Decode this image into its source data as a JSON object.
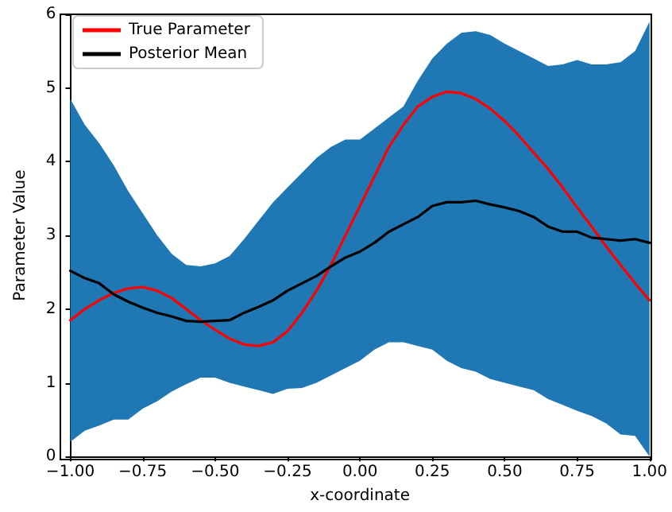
{
  "chart_data": {
    "type": "line",
    "xlabel": "x-coordinate",
    "ylabel": "Parameter Value",
    "xlim": [
      -1,
      1
    ],
    "ylim": [
      0,
      6
    ],
    "xticks": [
      {
        "value": -1,
        "label": "−1.00"
      },
      {
        "value": -0.75,
        "label": "−0.75"
      },
      {
        "value": -0.5,
        "label": "−0.50"
      },
      {
        "value": -0.25,
        "label": "−0.25"
      },
      {
        "value": 0,
        "label": "0.00"
      },
      {
        "value": 0.25,
        "label": "0.25"
      },
      {
        "value": 0.5,
        "label": "0.50"
      },
      {
        "value": 0.75,
        "label": "0.75"
      },
      {
        "value": 1,
        "label": "1.00"
      }
    ],
    "yticks": [
      0,
      1,
      2,
      3,
      4,
      5,
      6
    ],
    "x": [
      -1,
      -0.95,
      -0.9,
      -0.85,
      -0.8,
      -0.75,
      -0.7,
      -0.65,
      -0.6,
      -0.55,
      -0.5,
      -0.45,
      -0.4,
      -0.35,
      -0.3,
      -0.25,
      -0.2,
      -0.15,
      -0.1,
      -0.05,
      0,
      0.05,
      0.1,
      0.15,
      0.2,
      0.25,
      0.3,
      0.35,
      0.4,
      0.45,
      0.5,
      0.55,
      0.6,
      0.65,
      0.7,
      0.75,
      0.8,
      0.85,
      0.9,
      0.95,
      1
    ],
    "series": [
      {
        "name": "True Parameter",
        "color": "#ff0000",
        "values": [
          1.85,
          2.0,
          2.12,
          2.22,
          2.28,
          2.3,
          2.25,
          2.15,
          2.0,
          1.85,
          1.72,
          1.6,
          1.52,
          1.5,
          1.55,
          1.7,
          1.95,
          2.25,
          2.6,
          3.0,
          3.4,
          3.8,
          4.2,
          4.5,
          4.75,
          4.88,
          4.95,
          4.93,
          4.85,
          4.72,
          4.55,
          4.35,
          4.12,
          3.9,
          3.65,
          3.38,
          3.12,
          2.85,
          2.6,
          2.35,
          2.12
        ]
      },
      {
        "name": "Posterior Mean",
        "color": "#000000",
        "values": [
          2.52,
          2.42,
          2.35,
          2.2,
          2.1,
          2.02,
          1.95,
          1.9,
          1.84,
          1.83,
          1.84,
          1.85,
          1.95,
          2.03,
          2.12,
          2.25,
          2.35,
          2.45,
          2.58,
          2.7,
          2.78,
          2.9,
          3.05,
          3.15,
          3.25,
          3.4,
          3.45,
          3.45,
          3.47,
          3.42,
          3.38,
          3.33,
          3.25,
          3.12,
          3.05,
          3.05,
          2.97,
          2.95,
          2.93,
          2.95,
          2.9
        ],
        "lower": [
          0.2,
          0.35,
          0.42,
          0.5,
          0.5,
          0.65,
          0.75,
          0.88,
          0.98,
          1.07,
          1.07,
          1.0,
          0.95,
          0.9,
          0.85,
          0.92,
          0.93,
          1.0,
          1.1,
          1.2,
          1.3,
          1.45,
          1.55,
          1.55,
          1.5,
          1.45,
          1.3,
          1.2,
          1.15,
          1.05,
          1.0,
          0.95,
          0.9,
          0.78,
          0.7,
          0.62,
          0.55,
          0.45,
          0.3,
          0.28,
          0
        ],
        "upper": [
          4.85,
          4.5,
          4.25,
          3.95,
          3.6,
          3.3,
          3.0,
          2.75,
          2.6,
          2.58,
          2.62,
          2.72,
          2.95,
          3.2,
          3.45,
          3.65,
          3.85,
          4.05,
          4.2,
          4.3,
          4.3,
          4.45,
          4.6,
          4.75,
          5.1,
          5.4,
          5.6,
          5.75,
          5.77,
          5.72,
          5.6,
          5.5,
          5.4,
          5.3,
          5.32,
          5.38,
          5.32,
          5.32,
          5.35,
          5.5,
          5.9
        ]
      }
    ],
    "legend": "top left",
    "grid": false,
    "marker": "none",
    "line_style": "solid"
  }
}
